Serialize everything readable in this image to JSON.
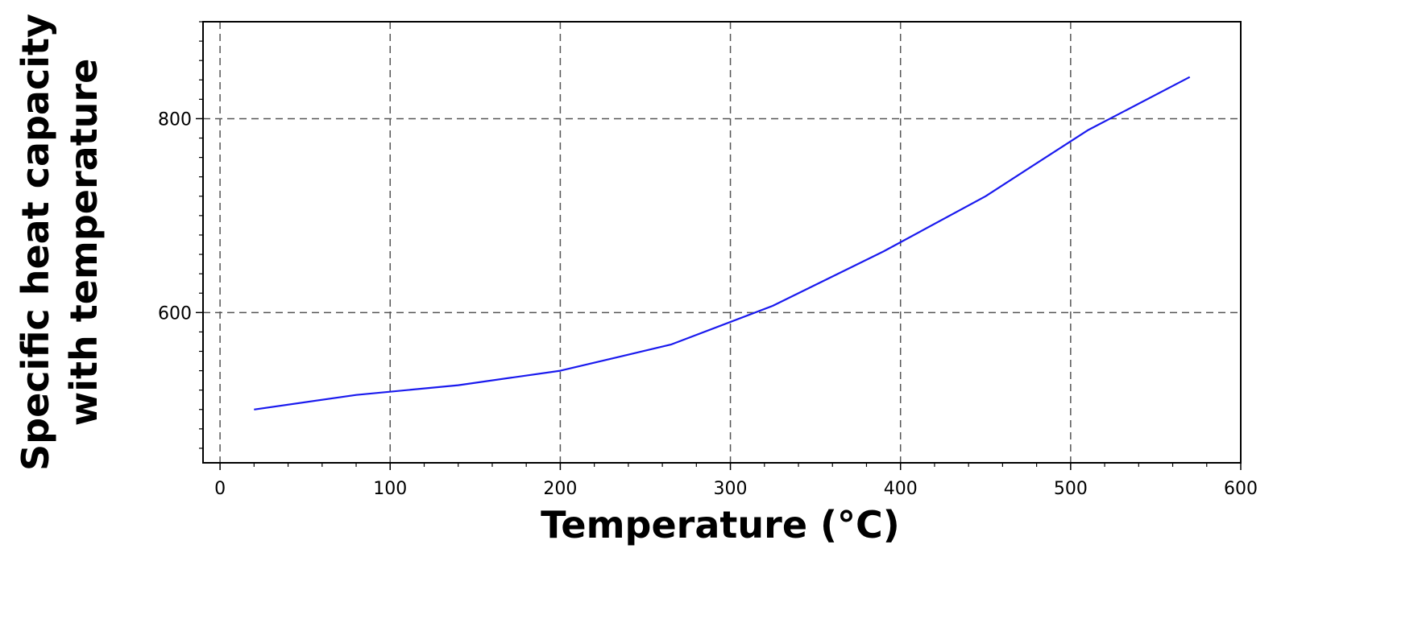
{
  "chart_data": {
    "type": "line",
    "xlabel": "Temperature (°C)",
    "ylabel_lines": [
      "Specific heat capacity",
      "with temperature"
    ],
    "xlim": [
      -10,
      600
    ],
    "ylim": [
      445,
      900
    ],
    "x_ticks": [
      0,
      100,
      200,
      300,
      400,
      500,
      600
    ],
    "y_ticks": [
      600,
      800
    ],
    "grid": true,
    "line_color": "#1a1aee",
    "series": [
      {
        "x": [
          20,
          80,
          140,
          200,
          265,
          325,
          390,
          450,
          510,
          570
        ],
        "y": [
          500,
          515,
          525,
          540,
          567,
          607,
          663,
          720,
          788,
          843
        ]
      }
    ]
  }
}
